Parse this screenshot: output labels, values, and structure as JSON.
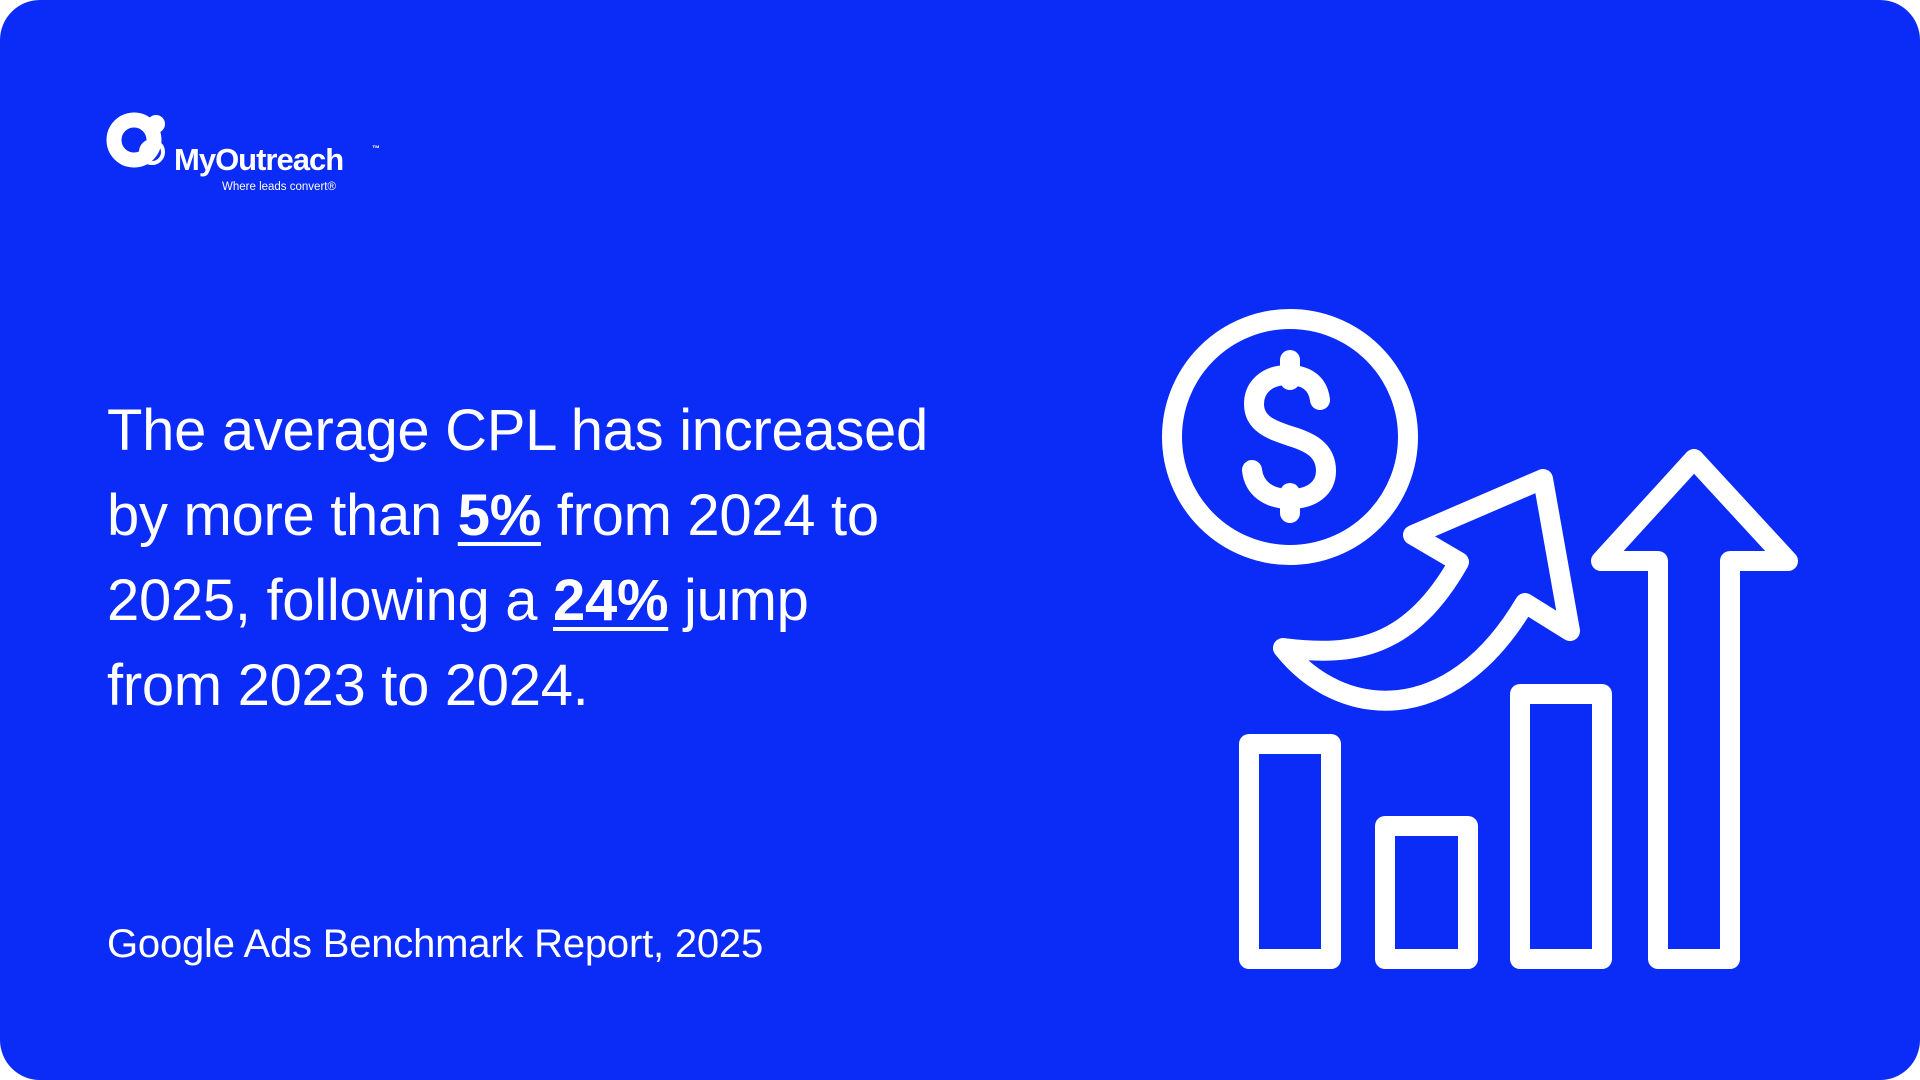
{
  "brand": {
    "name": "MyOutreach",
    "trademark": "™",
    "tagline": "Where leads convert®"
  },
  "statement": {
    "line1": "The average CPL has increased",
    "line2_pre": "by more than ",
    "line2_highlight": "5%",
    "line2_post": " from 2024 to",
    "line3_pre": "2025, following a ",
    "line3_highlight": "24%",
    "line3_post": " jump",
    "line4": "from 2023 to 2024."
  },
  "source": "Google Ads Benchmark Report, 2025",
  "illustration": {
    "icons": [
      "dollar-coin-icon",
      "curved-up-arrow-icon",
      "bar-chart-icon",
      "up-arrow-icon"
    ]
  },
  "colors": {
    "background": "#0B2BF6",
    "foreground": "#FFFFFF"
  }
}
